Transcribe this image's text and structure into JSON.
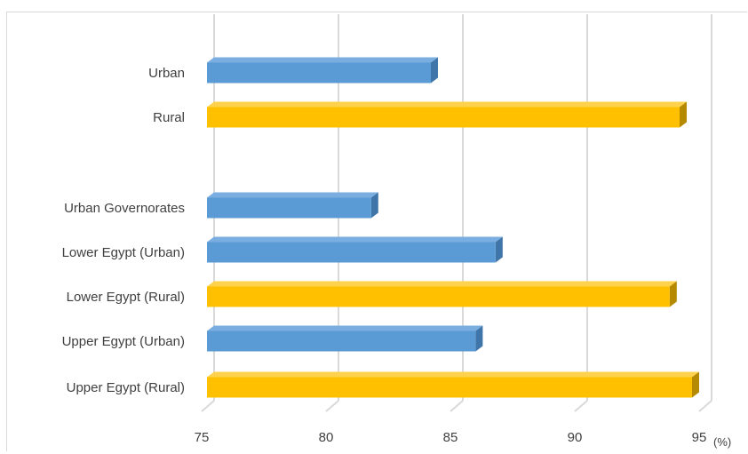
{
  "chart_data": {
    "type": "bar",
    "orientation": "horizontal",
    "style": "3d",
    "categories": [
      "Urban",
      "Rural",
      "",
      "Urban Governorates",
      "Lower Egypt (Urban)",
      "Lower Egypt (Rural)",
      "Upper Egypt (Urban)",
      "Upper Egypt (Rural)"
    ],
    "values": [
      84.0,
      94.0,
      null,
      81.6,
      86.6,
      93.6,
      85.8,
      94.5
    ],
    "bar_colors": [
      "blue",
      "gold",
      null,
      "blue",
      "blue",
      "gold",
      "blue",
      "gold"
    ],
    "xlim": [
      75,
      95
    ],
    "xticks": [
      "75",
      "80",
      "85",
      "90",
      "95"
    ],
    "xunit": "(%)",
    "grid": true,
    "legend": "none"
  },
  "colors": {
    "blue": {
      "front": "#5b9bd5",
      "top": "#7aaee0",
      "side": "#3f75a8"
    },
    "gold": {
      "front": "#ffc000",
      "top": "#ffd24d",
      "side": "#b58900"
    },
    "grid": "#d9d9d9",
    "text": "#404040"
  }
}
